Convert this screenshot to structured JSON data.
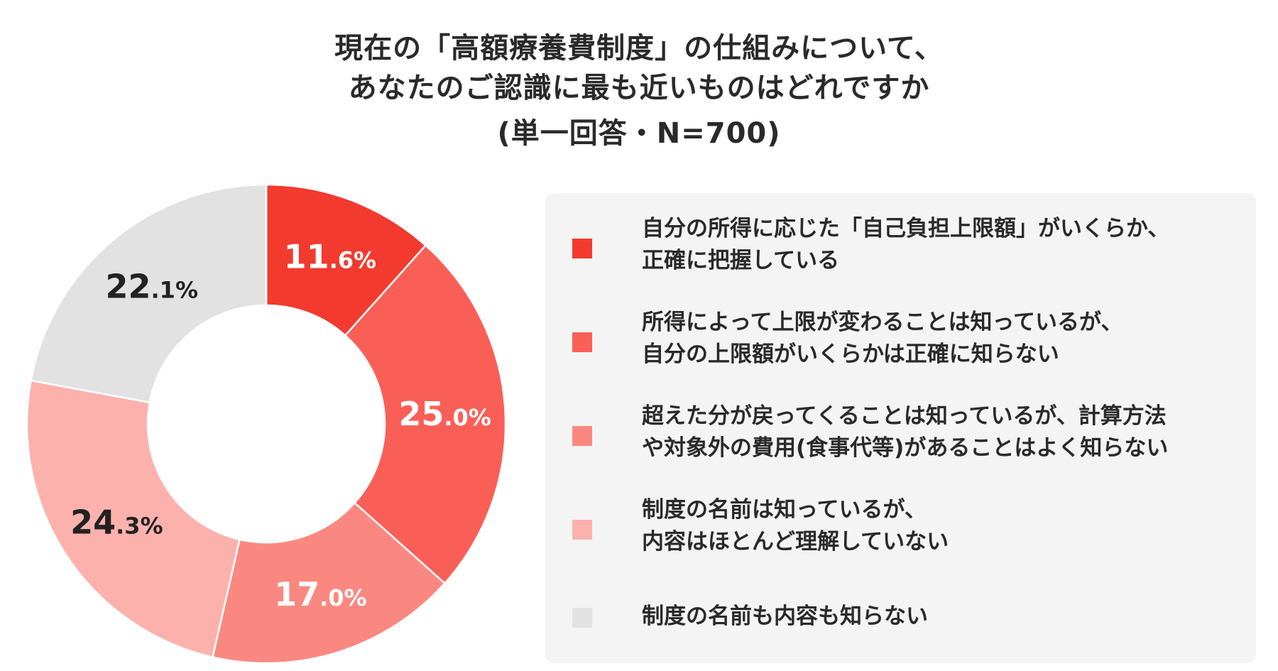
{
  "title": {
    "line1": "現在の「高額療養費制度」の仕組みについて、",
    "line2": "あなたのご認識に最も近いものはどれですか",
    "line3": "(単一回答・N=700)"
  },
  "chart_data": {
    "type": "pie",
    "donut": true,
    "legend_position": "right",
    "slices": [
      {
        "label_lines": [
          "自分の所得に応じた「自己負担上限額」がいくらか、",
          "正確に把握している"
        ],
        "value": 11.6,
        "int": "11",
        "dec": ".6%",
        "color": "#f23a2f",
        "label_color": "#ffffff"
      },
      {
        "label_lines": [
          "所得によって上限が変わることは知っているが、",
          "自分の上限額がいくらかは正確に知らない"
        ],
        "value": 25.0,
        "int": "25",
        "dec": ".0%",
        "color": "#f95f57",
        "label_color": "#ffffff"
      },
      {
        "label_lines": [
          "超えた分が戻ってくることは知っているが、計算方法",
          "や対象外の費用(食事代等)があることはよく知らない"
        ],
        "value": 17.0,
        "int": "17",
        "dec": ".0%",
        "color": "#fb8880",
        "label_color": "#ffffff"
      },
      {
        "label_lines": [
          "制度の名前は知っているが、",
          "内容はほとんど理解していない"
        ],
        "value": 24.3,
        "int": "24",
        "dec": ".3%",
        "color": "#fdb1ad",
        "label_color": "#222222"
      },
      {
        "label_lines": [
          "制度の名前も内容も知らない"
        ],
        "value": 22.1,
        "int": "22",
        "dec": ".1%",
        "color": "#e2e2e2",
        "label_color": "#222222"
      }
    ]
  }
}
